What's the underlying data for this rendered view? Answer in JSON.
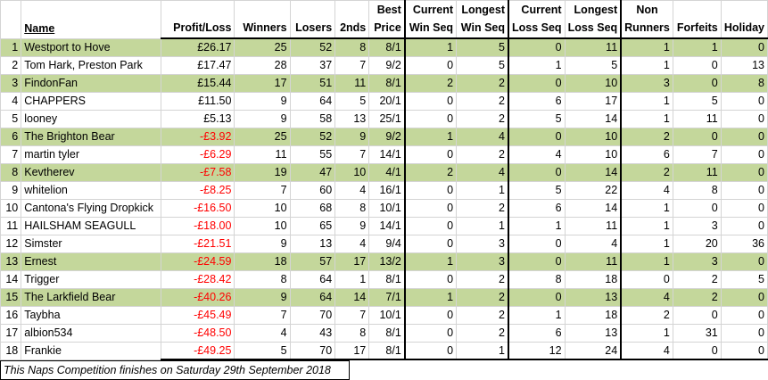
{
  "headers": {
    "pos": "",
    "name": "Name",
    "profit": "Profit/Loss",
    "winners": "Winners",
    "losers": "Losers",
    "seconds": "2nds",
    "best_line1": "Best",
    "best_line2": "Price",
    "cur_win_line1": "Current",
    "cur_win_line2": "Win Seq",
    "long_win_line1": "Longest",
    "long_win_line2": "Win Seq",
    "cur_loss_line1": "Current",
    "cur_loss_line2": "Loss Seq",
    "long_loss_line1": "Longest",
    "long_loss_line2": "Loss Seq",
    "non_line1": "Non",
    "non_line2": "Runners",
    "forfeits": "Forfeits",
    "holiday": "Holiday"
  },
  "highlight_color": "#c4d79b",
  "negative_color": "#ff0000",
  "rows": [
    {
      "pos": "1",
      "name": "Westport to Hove",
      "profit": "£26.17",
      "negative": false,
      "highlight": true,
      "winners": "25",
      "losers": "52",
      "seconds": "8",
      "best": "8/1",
      "cur_win": "1",
      "long_win": "5",
      "cur_loss": "0",
      "long_loss": "11",
      "non_runners": "1",
      "forfeits": "1",
      "holiday": "0"
    },
    {
      "pos": "2",
      "name": "Tom Hark, Preston Park",
      "profit": "£17.47",
      "negative": false,
      "highlight": false,
      "winners": "28",
      "losers": "37",
      "seconds": "7",
      "best": "9/2",
      "cur_win": "0",
      "long_win": "5",
      "cur_loss": "1",
      "long_loss": "5",
      "non_runners": "1",
      "forfeits": "0",
      "holiday": "13"
    },
    {
      "pos": "3",
      "name": "FindonFan",
      "profit": "£15.44",
      "negative": false,
      "highlight": true,
      "winners": "17",
      "losers": "51",
      "seconds": "11",
      "best": "8/1",
      "cur_win": "2",
      "long_win": "2",
      "cur_loss": "0",
      "long_loss": "10",
      "non_runners": "3",
      "forfeits": "0",
      "holiday": "8"
    },
    {
      "pos": "4",
      "name": "CHAPPERS",
      "profit": "£11.50",
      "negative": false,
      "highlight": false,
      "winners": "9",
      "losers": "64",
      "seconds": "5",
      "best": "20/1",
      "cur_win": "0",
      "long_win": "2",
      "cur_loss": "6",
      "long_loss": "17",
      "non_runners": "1",
      "forfeits": "5",
      "holiday": "0"
    },
    {
      "pos": "5",
      "name": "looney",
      "profit": "£5.13",
      "negative": false,
      "highlight": false,
      "winners": "9",
      "losers": "58",
      "seconds": "13",
      "best": "25/1",
      "cur_win": "0",
      "long_win": "2",
      "cur_loss": "5",
      "long_loss": "14",
      "non_runners": "1",
      "forfeits": "11",
      "holiday": "0"
    },
    {
      "pos": "6",
      "name": "The Brighton Bear",
      "profit": "-£3.92",
      "negative": true,
      "highlight": true,
      "winners": "25",
      "losers": "52",
      "seconds": "9",
      "best": "9/2",
      "cur_win": "1",
      "long_win": "4",
      "cur_loss": "0",
      "long_loss": "10",
      "non_runners": "2",
      "forfeits": "0",
      "holiday": "0"
    },
    {
      "pos": "7",
      "name": "martin tyler",
      "profit": "-£6.29",
      "negative": true,
      "highlight": false,
      "winners": "11",
      "losers": "55",
      "seconds": "7",
      "best": "14/1",
      "cur_win": "0",
      "long_win": "2",
      "cur_loss": "4",
      "long_loss": "10",
      "non_runners": "6",
      "forfeits": "7",
      "holiday": "0"
    },
    {
      "pos": "8",
      "name": "Kevtherev",
      "profit": "-£7.58",
      "negative": true,
      "highlight": true,
      "winners": "19",
      "losers": "47",
      "seconds": "10",
      "best": "4/1",
      "cur_win": "2",
      "long_win": "4",
      "cur_loss": "0",
      "long_loss": "14",
      "non_runners": "2",
      "forfeits": "11",
      "holiday": "0"
    },
    {
      "pos": "9",
      "name": "whitelion",
      "profit": "-£8.25",
      "negative": true,
      "highlight": false,
      "winners": "7",
      "losers": "60",
      "seconds": "4",
      "best": "16/1",
      "cur_win": "0",
      "long_win": "1",
      "cur_loss": "5",
      "long_loss": "22",
      "non_runners": "4",
      "forfeits": "8",
      "holiday": "0"
    },
    {
      "pos": "10",
      "name": "Cantona's Flying Dropkick",
      "profit": "-£16.50",
      "negative": true,
      "highlight": false,
      "winners": "10",
      "losers": "68",
      "seconds": "8",
      "best": "10/1",
      "cur_win": "0",
      "long_win": "2",
      "cur_loss": "6",
      "long_loss": "14",
      "non_runners": "1",
      "forfeits": "0",
      "holiday": "0"
    },
    {
      "pos": "11",
      "name": "HAILSHAM SEAGULL",
      "profit": "-£18.00",
      "negative": true,
      "highlight": false,
      "winners": "10",
      "losers": "65",
      "seconds": "9",
      "best": "14/1",
      "cur_win": "0",
      "long_win": "1",
      "cur_loss": "1",
      "long_loss": "11",
      "non_runners": "1",
      "forfeits": "3",
      "holiday": "0"
    },
    {
      "pos": "12",
      "name": "Simster",
      "profit": "-£21.51",
      "negative": true,
      "highlight": false,
      "winners": "9",
      "losers": "13",
      "seconds": "4",
      "best": "9/4",
      "cur_win": "0",
      "long_win": "3",
      "cur_loss": "0",
      "long_loss": "4",
      "non_runners": "1",
      "forfeits": "20",
      "holiday": "36"
    },
    {
      "pos": "13",
      "name": "Ernest",
      "profit": "-£24.59",
      "negative": true,
      "highlight": true,
      "winners": "18",
      "losers": "57",
      "seconds": "17",
      "best": "13/2",
      "cur_win": "1",
      "long_win": "3",
      "cur_loss": "0",
      "long_loss": "11",
      "non_runners": "1",
      "forfeits": "3",
      "holiday": "0"
    },
    {
      "pos": "14",
      "name": "Trigger",
      "profit": "-£28.42",
      "negative": true,
      "highlight": false,
      "winners": "8",
      "losers": "64",
      "seconds": "1",
      "best": "8/1",
      "cur_win": "0",
      "long_win": "2",
      "cur_loss": "8",
      "long_loss": "18",
      "non_runners": "0",
      "forfeits": "2",
      "holiday": "5"
    },
    {
      "pos": "15",
      "name": "The Larkfield Bear",
      "profit": "-£40.26",
      "negative": true,
      "highlight": true,
      "winners": "9",
      "losers": "64",
      "seconds": "14",
      "best": "7/1",
      "cur_win": "1",
      "long_win": "2",
      "cur_loss": "0",
      "long_loss": "13",
      "non_runners": "4",
      "forfeits": "2",
      "holiday": "0"
    },
    {
      "pos": "16",
      "name": "Taybha",
      "profit": "-£45.49",
      "negative": true,
      "highlight": false,
      "winners": "7",
      "losers": "70",
      "seconds": "7",
      "best": "10/1",
      "cur_win": "0",
      "long_win": "2",
      "cur_loss": "1",
      "long_loss": "18",
      "non_runners": "2",
      "forfeits": "0",
      "holiday": "0"
    },
    {
      "pos": "17",
      "name": "albion534",
      "profit": "-£48.50",
      "negative": true,
      "highlight": false,
      "winners": "4",
      "losers": "43",
      "seconds": "8",
      "best": "8/1",
      "cur_win": "0",
      "long_win": "2",
      "cur_loss": "6",
      "long_loss": "13",
      "non_runners": "1",
      "forfeits": "31",
      "holiday": "0"
    },
    {
      "pos": "18",
      "name": "Frankie",
      "profit": "-£49.25",
      "negative": true,
      "highlight": false,
      "winners": "5",
      "losers": "70",
      "seconds": "17",
      "best": "8/1",
      "cur_win": "0",
      "long_win": "1",
      "cur_loss": "12",
      "long_loss": "24",
      "non_runners": "4",
      "forfeits": "0",
      "holiday": "0"
    }
  ],
  "footnote": "This Naps Competition finishes on Saturday 29th September 2018"
}
